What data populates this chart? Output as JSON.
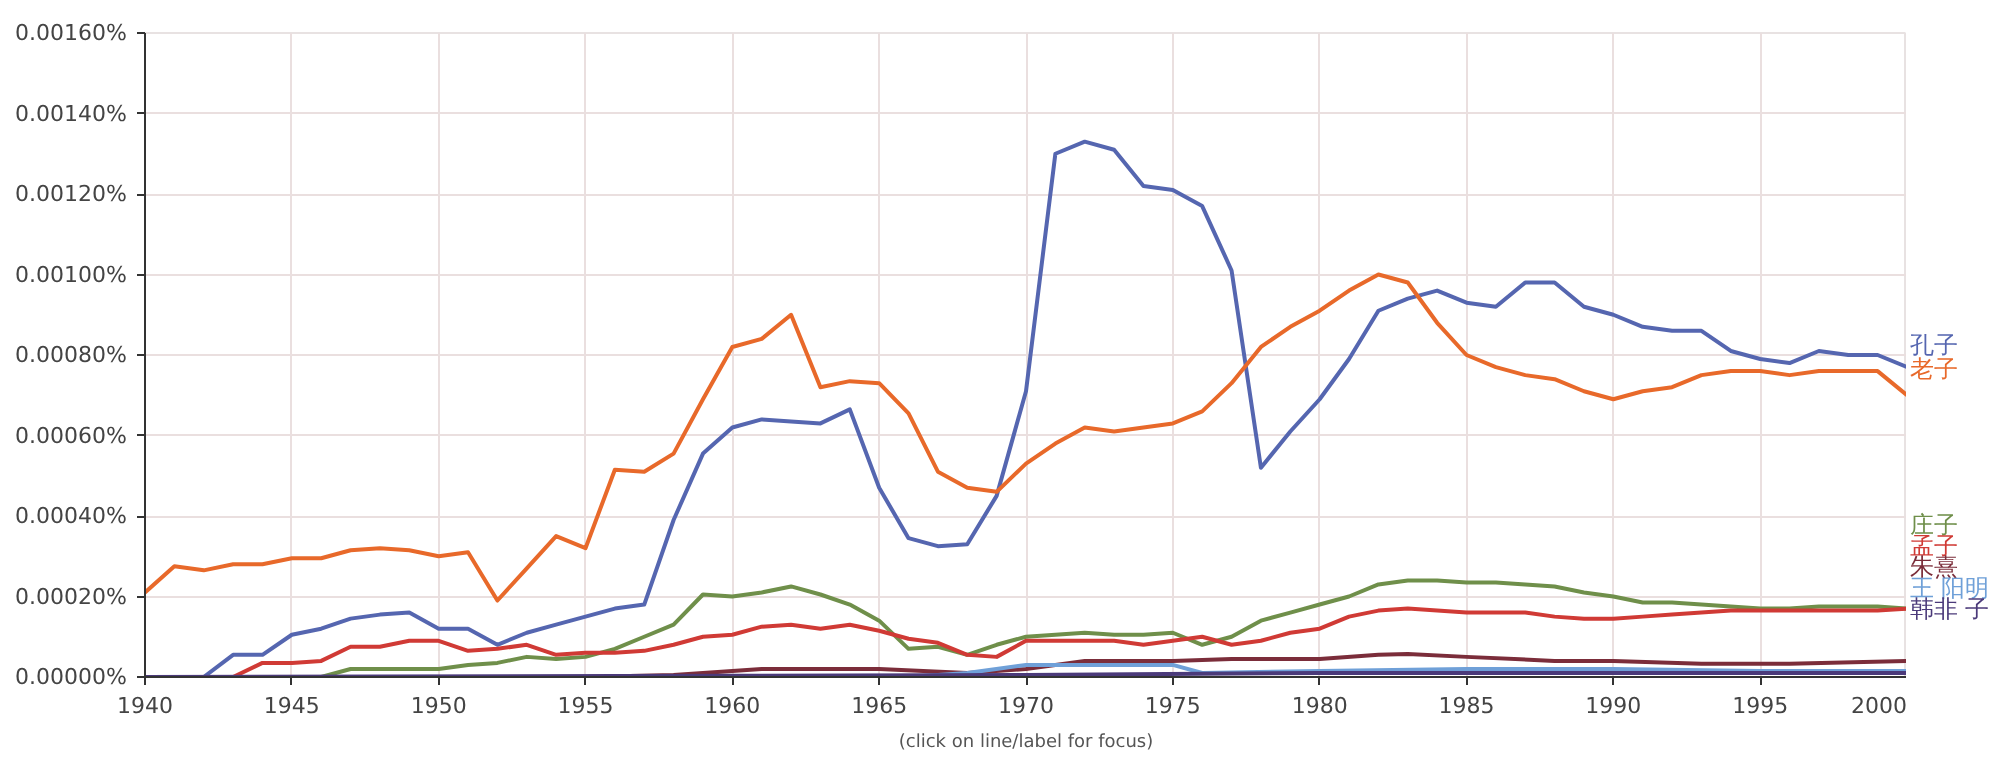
{
  "chart_data": {
    "type": "line",
    "annotations": [
      "(click on line/label for focus)"
    ],
    "x": [
      1940,
      1941,
      1942,
      1943,
      1944,
      1945,
      1946,
      1947,
      1948,
      1949,
      1950,
      1951,
      1952,
      1953,
      1954,
      1955,
      1956,
      1957,
      1958,
      1959,
      1960,
      1961,
      1962,
      1963,
      1964,
      1965,
      1966,
      1967,
      1968,
      1969,
      1970,
      1971,
      1972,
      1973,
      1974,
      1975,
      1976,
      1977,
      1978,
      1979,
      1980,
      1981,
      1982,
      1983,
      1984,
      1985,
      1986,
      1987,
      1988,
      1989,
      1990,
      1991,
      1992,
      1993,
      1994,
      1995,
      1996,
      1997,
      1998,
      1999,
      2000
    ],
    "series": [
      {
        "name": "孔子",
        "color": "#5566b0",
        "values": [
          0,
          0,
          0,
          5.5e-05,
          5.5e-05,
          0.000105,
          0.00012,
          0.000145,
          0.000155,
          0.00016,
          0.00012,
          0.00012,
          8e-05,
          0.00011,
          0.00013,
          0.00015,
          0.00017,
          0.00018,
          0.00039,
          0.000555,
          0.00062,
          0.00064,
          0.000635,
          0.00063,
          0.000665,
          0.00047,
          0.000345,
          0.000325,
          0.00033,
          0.00045,
          0.00071,
          0.0013,
          0.00133,
          0.00131,
          0.00122,
          0.00121,
          0.00117,
          0.00101,
          0.00052,
          0.00061,
          0.00069,
          0.00079,
          0.00091,
          0.00094,
          0.00096,
          0.00093,
          0.00092,
          0.00098,
          0.00098,
          0.00092,
          0.0009,
          0.00087,
          0.00086,
          0.00086,
          0.00081,
          0.00079,
          0.00078,
          0.00081,
          0.0008,
          0.0008,
          0.00077
        ]
      },
      {
        "name": "老子",
        "color": "#e8692a",
        "values": [
          0.00021,
          0.000275,
          0.000265,
          0.00028,
          0.00028,
          0.000295,
          0.000295,
          0.000315,
          0.00032,
          0.000315,
          0.0003,
          0.00031,
          0.00019,
          0.00027,
          0.00035,
          0.00032,
          0.000515,
          0.00051,
          0.000555,
          0.00069,
          0.00082,
          0.00084,
          0.0009,
          0.00072,
          0.000735,
          0.00073,
          0.000655,
          0.00051,
          0.00047,
          0.00046,
          0.00053,
          0.00058,
          0.00062,
          0.00061,
          0.00062,
          0.00063,
          0.00066,
          0.00073,
          0.00082,
          0.00087,
          0.00091,
          0.00096,
          0.001,
          0.00098,
          0.00088,
          0.0008,
          0.00077,
          0.00075,
          0.00074,
          0.00071,
          0.00069,
          0.00071,
          0.00072,
          0.00075,
          0.00076,
          0.00076,
          0.00075,
          0.00076,
          0.00076,
          0.00076,
          0.0007
        ]
      },
      {
        "name": "庄子",
        "color": "#6f8f4a",
        "x": [
          1945,
          1946,
          1947,
          1948,
          1949,
          1950,
          1951,
          1952,
          1953,
          1954,
          1955,
          1956,
          1957,
          1958,
          1959,
          1960,
          1961,
          1962,
          1963,
          1964,
          1965,
          1966,
          1967,
          1968,
          1969,
          1970,
          1971,
          1972,
          1973,
          1974,
          1975,
          1976,
          1977,
          1978,
          1979,
          1980,
          1981,
          1982,
          1983,
          1984,
          1985,
          1986,
          1987,
          1988,
          1989,
          1990,
          1991,
          1992,
          1993,
          1994,
          1995,
          1996,
          1997,
          1998,
          1999,
          2000
        ],
        "values": [
          0,
          0,
          2e-05,
          2e-05,
          2e-05,
          2e-05,
          3e-05,
          3.5e-05,
          5e-05,
          4.5e-05,
          5e-05,
          7e-05,
          0.0001,
          0.00013,
          0.000205,
          0.0002,
          0.00021,
          0.000225,
          0.000205,
          0.00018,
          0.00014,
          7e-05,
          7.5e-05,
          5.5e-05,
          8e-05,
          0.0001,
          0.000105,
          0.00011,
          0.000105,
          0.000105,
          0.00011,
          8e-05,
          0.0001,
          0.00014,
          0.00016,
          0.00018,
          0.0002,
          0.00023,
          0.00024,
          0.00024,
          0.000235,
          0.000235,
          0.00023,
          0.000225,
          0.00021,
          0.0002,
          0.000185,
          0.000185,
          0.00018,
          0.000175,
          0.00017,
          0.00017,
          0.000175,
          0.000175,
          0.000175,
          0.00017
        ]
      },
      {
        "name": "孟子",
        "color": "#d03a35",
        "x": [
          1942,
          1943,
          1944,
          1945,
          1946,
          1947,
          1948,
          1949,
          1950,
          1951,
          1952,
          1953,
          1954,
          1955,
          1956,
          1957,
          1958,
          1959,
          1960,
          1961,
          1962,
          1963,
          1964,
          1965,
          1966,
          1967,
          1968,
          1969,
          1970,
          1971,
          1972,
          1973,
          1974,
          1975,
          1976,
          1977,
          1978,
          1979,
          1980,
          1981,
          1982,
          1983,
          1984,
          1985,
          1986,
          1987,
          1988,
          1989,
          1990,
          1991,
          1992,
          1993,
          1994,
          1995,
          1996,
          1997,
          1998,
          1999,
          2000
        ],
        "values": [
          0,
          0,
          3.5e-05,
          3.5e-05,
          4e-05,
          7.5e-05,
          7.5e-05,
          9e-05,
          9e-05,
          6.5e-05,
          7e-05,
          8e-05,
          5.5e-05,
          6e-05,
          6e-05,
          6.5e-05,
          8e-05,
          0.0001,
          0.000105,
          0.000125,
          0.00013,
          0.00012,
          0.00013,
          0.000115,
          9.5e-05,
          8.5e-05,
          5.5e-05,
          5e-05,
          9e-05,
          9e-05,
          9e-05,
          9e-05,
          8e-05,
          9e-05,
          0.0001,
          8e-05,
          9e-05,
          0.00011,
          0.00012,
          0.00015,
          0.000165,
          0.00017,
          0.000165,
          0.00016,
          0.00016,
          0.00016,
          0.00015,
          0.000145,
          0.000145,
          0.00015,
          0.000155,
          0.00016,
          0.000165,
          0.000165,
          0.000165,
          0.000165,
          0.000165,
          0.000165,
          0.00017
        ]
      },
      {
        "name": "朱熹",
        "color": "#7b2d3a",
        "x": [
          1940,
          1955,
          1958,
          1961,
          1965,
          1968,
          1970,
          1972,
          1975,
          1977,
          1980,
          1982,
          1983,
          1985,
          1988,
          1990,
          1993,
          1996,
          2000
        ],
        "values": [
          0,
          0,
          5e-06,
          2e-05,
          2e-05,
          1e-05,
          2e-05,
          4e-05,
          4e-05,
          4.5e-05,
          4.5e-05,
          5.5e-05,
          5.7e-05,
          5e-05,
          4e-05,
          4e-05,
          3.3e-05,
          3.3e-05,
          4e-05
        ]
      },
      {
        "name": "王 阳明",
        "color": "#6fa0d8",
        "x": [
          1940,
          1966,
          1968,
          1970,
          1972,
          1975,
          1976,
          1980,
          1985,
          1990,
          1995,
          2000
        ],
        "values": [
          0,
          0,
          1e-05,
          3e-05,
          3e-05,
          3e-05,
          1e-05,
          1.5e-05,
          2e-05,
          2e-05,
          1.5e-05,
          1.5e-05
        ]
      },
      {
        "name": "韩非 子",
        "color": "#4b3a7a",
        "x": [
          1940,
          1960,
          1970,
          1980,
          1990,
          2000
        ],
        "values": [
          0,
          3e-06,
          5e-06,
          1e-05,
          1e-05,
          1e-05
        ]
      }
    ],
    "xlim": [
      1940,
      2000
    ],
    "ylim": [
      0,
      0.0016
    ],
    "xticks": [
      1940,
      1945,
      1950,
      1955,
      1960,
      1965,
      1970,
      1975,
      1980,
      1985,
      1990,
      1995,
      2000
    ],
    "yticks": [
      {
        "value": 0,
        "label": "0.00000%"
      },
      {
        "value": 0.0002,
        "label": "0.00020%"
      },
      {
        "value": 0.0004,
        "label": "0.00040%"
      },
      {
        "value": 0.0006,
        "label": "0.00060%"
      },
      {
        "value": 0.0008,
        "label": "0.00080%"
      },
      {
        "value": 0.001,
        "label": "0.00100%"
      },
      {
        "value": 0.0012,
        "label": "0.00120%"
      },
      {
        "value": 0.0014,
        "label": "0.00140%"
      },
      {
        "value": 0.0016,
        "label": "0.00160%"
      }
    ],
    "grid": true,
    "marker": "none",
    "line_style": "solid"
  }
}
